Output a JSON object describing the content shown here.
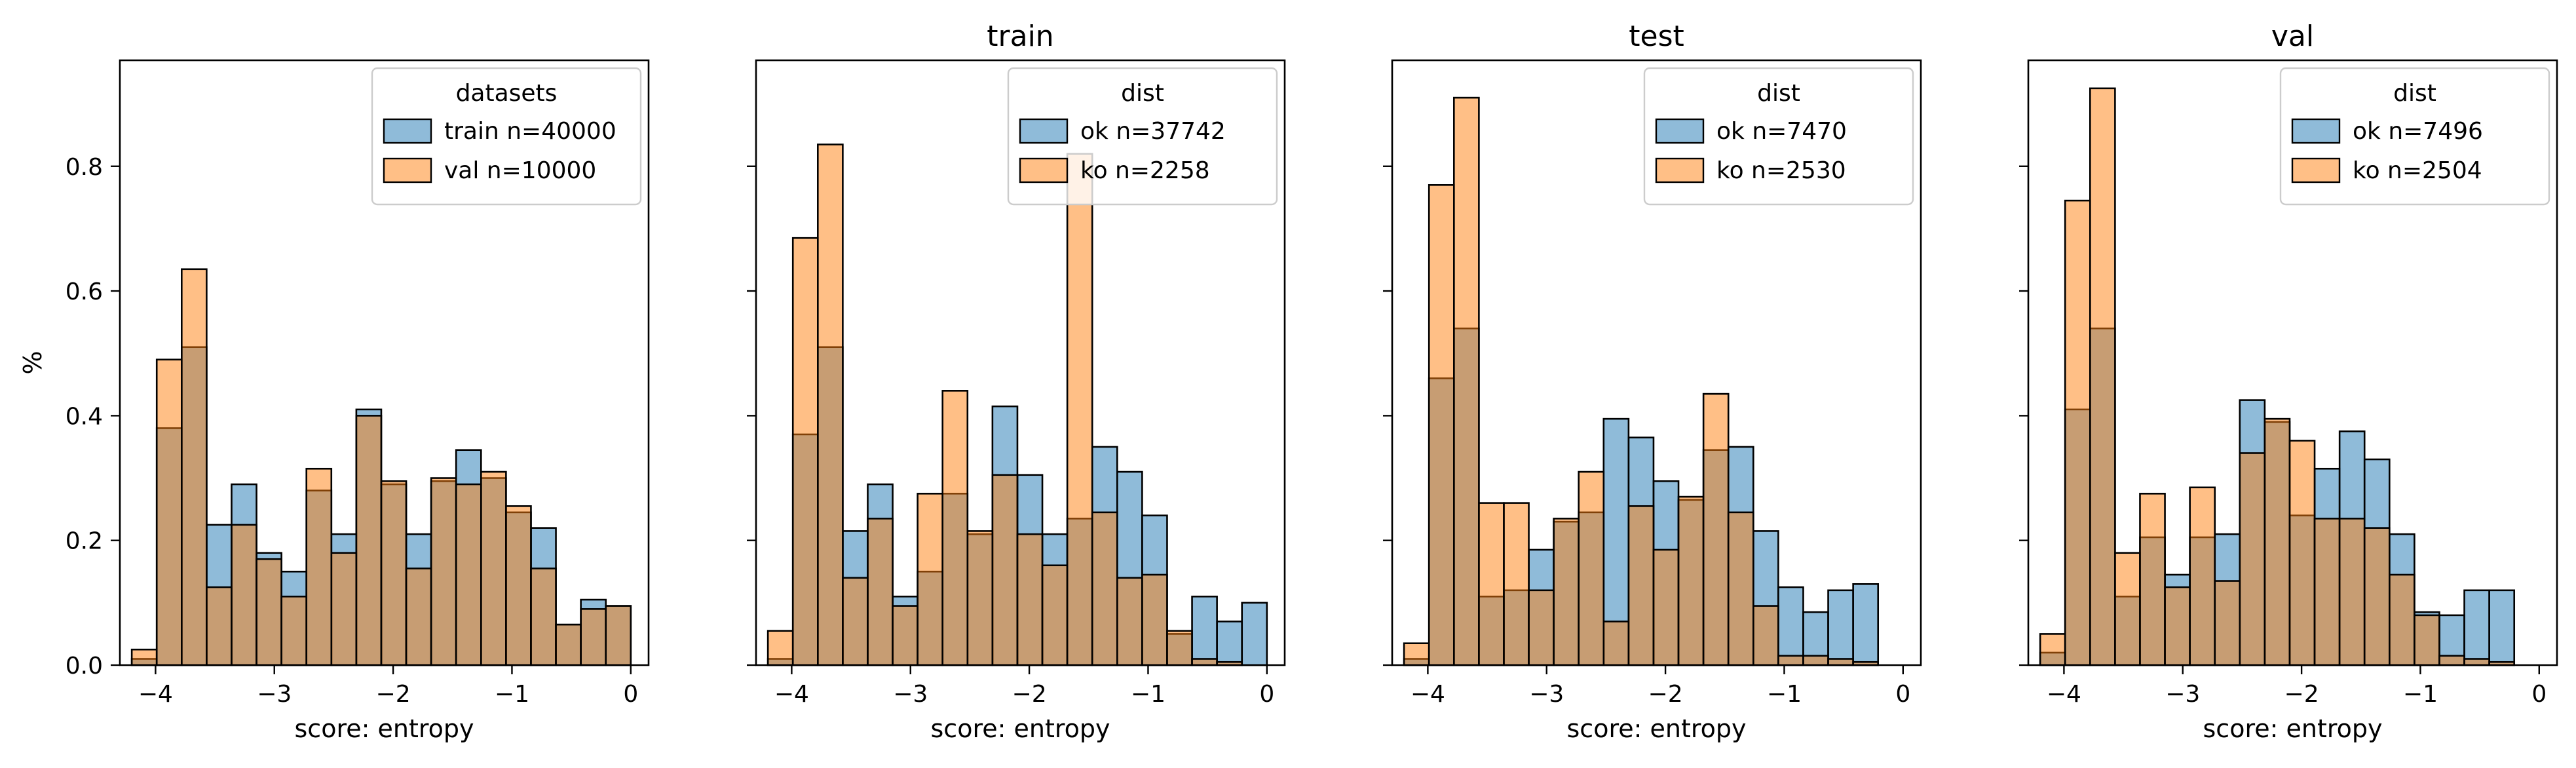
{
  "chart_data": [
    {
      "type": "histogram",
      "title": "",
      "xlabel": "score: entropy",
      "ylabel": "%",
      "xlim": [
        -4.3,
        0.15
      ],
      "ylim": [
        0,
        0.97
      ],
      "xticks": [
        -4,
        -3,
        -2,
        -1,
        0
      ],
      "yticks": [
        0.0,
        0.2,
        0.4,
        0.6,
        0.8
      ],
      "show_yticklabels": true,
      "legend": {
        "title": "datasets",
        "position": "top-right"
      },
      "bin_edges": [
        -4.2,
        -3.99,
        -3.78,
        -3.57,
        -3.36,
        -3.15,
        -2.94,
        -2.73,
        -2.52,
        -2.31,
        -2.1,
        -1.89,
        -1.68,
        -1.47,
        -1.26,
        -1.05,
        -0.84,
        -0.63,
        -0.42,
        -0.21,
        0.0
      ],
      "series": [
        {
          "name": "train n=40000",
          "color": "#1f77b4",
          "values": [
            0.01,
            0.38,
            0.51,
            0.225,
            0.29,
            0.18,
            0.15,
            0.28,
            0.21,
            0.41,
            0.29,
            0.21,
            0.295,
            0.345,
            0.3,
            0.245,
            0.22,
            0.065,
            0.105,
            0.095
          ]
        },
        {
          "name": "val n=10000",
          "color": "#ff7f0e",
          "values": [
            0.025,
            0.49,
            0.635,
            0.125,
            0.225,
            0.17,
            0.11,
            0.315,
            0.18,
            0.4,
            0.295,
            0.155,
            0.3,
            0.29,
            0.31,
            0.255,
            0.155,
            0.065,
            0.09,
            0.095
          ]
        }
      ]
    },
    {
      "type": "histogram",
      "title": "train",
      "xlabel": "score: entropy",
      "ylabel": "",
      "xlim": [
        -4.3,
        0.15
      ],
      "ylim": [
        0,
        0.97
      ],
      "xticks": [
        -4,
        -3,
        -2,
        -1,
        0
      ],
      "yticks": [
        0.0,
        0.2,
        0.4,
        0.6,
        0.8
      ],
      "show_yticklabels": false,
      "legend": {
        "title": "dist",
        "position": "top-right"
      },
      "bin_edges": [
        -4.2,
        -3.99,
        -3.78,
        -3.57,
        -3.36,
        -3.15,
        -2.94,
        -2.73,
        -2.52,
        -2.31,
        -2.1,
        -1.89,
        -1.68,
        -1.47,
        -1.26,
        -1.05,
        -0.84,
        -0.63,
        -0.42,
        -0.21,
        0.0
      ],
      "series": [
        {
          "name": "ok n=37742",
          "color": "#1f77b4",
          "values": [
            0.01,
            0.37,
            0.51,
            0.215,
            0.29,
            0.11,
            0.15,
            0.275,
            0.21,
            0.415,
            0.305,
            0.21,
            0.235,
            0.35,
            0.31,
            0.24,
            0.05,
            0.11,
            0.07,
            0.1
          ]
        },
        {
          "name": "ko n=2258",
          "color": "#ff7f0e",
          "values": [
            0.055,
            0.685,
            0.835,
            0.14,
            0.235,
            0.095,
            0.275,
            0.44,
            0.215,
            0.305,
            0.21,
            0.16,
            0.82,
            0.245,
            0.14,
            0.145,
            0.055,
            0.01,
            0.005,
            0.0
          ]
        }
      ]
    },
    {
      "type": "histogram",
      "title": "test",
      "xlabel": "score: entropy",
      "ylabel": "",
      "xlim": [
        -4.3,
        0.15
      ],
      "ylim": [
        0,
        0.97
      ],
      "xticks": [
        -4,
        -3,
        -2,
        -1,
        0
      ],
      "yticks": [
        0.0,
        0.2,
        0.4,
        0.6,
        0.8
      ],
      "show_yticklabels": false,
      "legend": {
        "title": "dist",
        "position": "top-right"
      },
      "bin_edges": [
        -4.2,
        -3.99,
        -3.78,
        -3.57,
        -3.36,
        -3.15,
        -2.94,
        -2.73,
        -2.52,
        -2.31,
        -2.1,
        -1.89,
        -1.68,
        -1.47,
        -1.26,
        -1.05,
        -0.84,
        -0.63,
        -0.42,
        -0.21,
        0.0
      ],
      "series": [
        {
          "name": "ok n=7470",
          "color": "#1f77b4",
          "values": [
            0.01,
            0.46,
            0.54,
            0.11,
            0.12,
            0.185,
            0.23,
            0.245,
            0.395,
            0.365,
            0.295,
            0.265,
            0.345,
            0.35,
            0.215,
            0.125,
            0.085,
            0.12,
            0.13,
            0.0
          ]
        },
        {
          "name": "ko n=2530",
          "color": "#ff7f0e",
          "values": [
            0.035,
            0.77,
            0.91,
            0.26,
            0.26,
            0.12,
            0.235,
            0.31,
            0.07,
            0.255,
            0.185,
            0.27,
            0.435,
            0.245,
            0.095,
            0.015,
            0.015,
            0.01,
            0.005,
            0.0
          ]
        }
      ]
    },
    {
      "type": "histogram",
      "title": "val",
      "xlabel": "score: entropy",
      "ylabel": "",
      "xlim": [
        -4.3,
        0.15
      ],
      "ylim": [
        0,
        0.97
      ],
      "xticks": [
        -4,
        -3,
        -2,
        -1,
        0
      ],
      "yticks": [
        0.0,
        0.2,
        0.4,
        0.6,
        0.8
      ],
      "show_yticklabels": false,
      "legend": {
        "title": "dist",
        "position": "top-right"
      },
      "bin_edges": [
        -4.2,
        -3.99,
        -3.78,
        -3.57,
        -3.36,
        -3.15,
        -2.94,
        -2.73,
        -2.52,
        -2.31,
        -2.1,
        -1.89,
        -1.68,
        -1.47,
        -1.26,
        -1.05,
        -0.84,
        -0.63,
        -0.42,
        -0.21,
        0.0
      ],
      "series": [
        {
          "name": "ok n=7496",
          "color": "#1f77b4",
          "values": [
            0.02,
            0.41,
            0.54,
            0.11,
            0.205,
            0.145,
            0.205,
            0.21,
            0.425,
            0.39,
            0.24,
            0.315,
            0.375,
            0.33,
            0.21,
            0.085,
            0.08,
            0.12,
            0.12,
            0.0
          ]
        },
        {
          "name": "ko n=2504",
          "color": "#ff7f0e",
          "values": [
            0.05,
            0.745,
            0.925,
            0.18,
            0.275,
            0.125,
            0.285,
            0.135,
            0.34,
            0.395,
            0.36,
            0.235,
            0.235,
            0.22,
            0.145,
            0.08,
            0.015,
            0.01,
            0.005,
            0.0
          ]
        }
      ]
    }
  ]
}
